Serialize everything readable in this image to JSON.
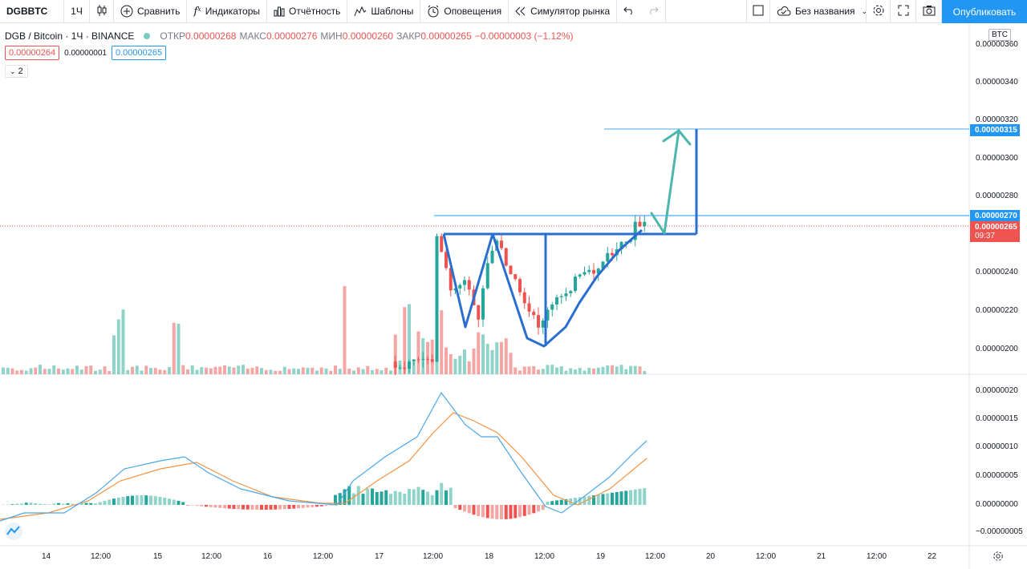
{
  "toolbar": {
    "symbol": "DGBBTC",
    "interval": "1Ч",
    "compare": "Сравнить",
    "indicators": "Индикаторы",
    "reports": "Отчётность",
    "templates": "Шаблоны",
    "alerts": "Оповещения",
    "replay": "Симулятор рынка",
    "layout_name": "Без названия",
    "publish": "Опубликовать"
  },
  "legend": {
    "title": "DGB / Bitcoin · 1Ч · BINANCE",
    "open_label": "ОТКР",
    "open": "0.00000268",
    "high_label": "МАКС",
    "high": "0.00000276",
    "low_label": "МИН",
    "low": "0.00000260",
    "close_label": "ЗАКР",
    "close": "0.00000265",
    "change": "−0.00000003 (−1.12%)",
    "sell_price": "0.00000264",
    "spread": "0.00000001",
    "buy_price": "0.00000265",
    "collapsed_count": "2"
  },
  "price_axis": {
    "currency": "BTC",
    "labels": [
      "0.00000360",
      "0.00000340",
      "0.00000320",
      "0.00000300",
      "0.00000280",
      "0.00000240",
      "0.00000220",
      "0.00000200"
    ],
    "target_tag": "0.00000315",
    "high_tag": "0.00000270",
    "last_tag": "0.00000265",
    "countdown": "09:37"
  },
  "macd_axis": {
    "labels": [
      "0.00000020",
      "0.00000015",
      "0.00000010",
      "0.00000005",
      "0.00000000",
      "−0.00000005"
    ]
  },
  "time_axis": {
    "labels": [
      "14",
      "12:00",
      "15",
      "12:00",
      "16",
      "12:00",
      "17",
      "12:00",
      "18",
      "12:00",
      "19",
      "12:00",
      "20",
      "12:00",
      "21",
      "12:00",
      "22"
    ]
  },
  "colors": {
    "up": "#26a69a",
    "down": "#ef5350",
    "up_volume": "#8fd3c9",
    "down_volume": "#f4a6a4",
    "drawing_blue": "#2a6fcf",
    "arrow_teal": "#4db6ac",
    "macd_line": "#4aa8e8",
    "signal_line": "#f49342",
    "accent": "#2196f3"
  }
}
